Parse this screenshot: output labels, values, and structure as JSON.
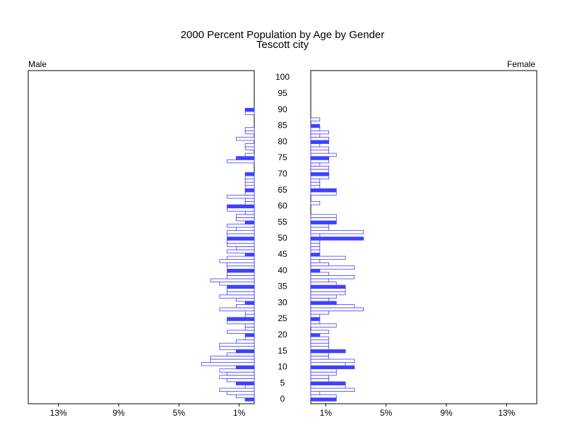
{
  "chart_data": {
    "type": "pyramid",
    "title": "2000 Percent Population by Age by Gender",
    "subtitle": "Tescott city",
    "y": [
      0,
      1,
      2,
      3,
      4,
      5,
      6,
      7,
      8,
      9,
      10,
      11,
      12,
      13,
      14,
      15,
      16,
      17,
      18,
      19,
      20,
      21,
      22,
      23,
      24,
      25,
      26,
      27,
      28,
      29,
      30,
      31,
      32,
      33,
      34,
      35,
      36,
      37,
      38,
      39,
      40,
      41,
      42,
      43,
      44,
      45,
      46,
      47,
      48,
      49,
      50,
      51,
      52,
      53,
      54,
      55,
      56,
      57,
      58,
      59,
      60,
      61,
      62,
      63,
      64,
      65,
      66,
      67,
      68,
      69,
      70,
      71,
      72,
      73,
      74,
      75,
      76,
      77,
      78,
      79,
      80,
      81,
      82,
      83,
      84,
      85,
      86,
      87,
      88,
      89,
      90,
      91,
      92,
      93,
      94,
      95,
      96,
      97,
      98,
      99,
      100
    ],
    "ylim": [
      0,
      100
    ],
    "yticks": [
      0,
      5,
      10,
      15,
      20,
      25,
      30,
      35,
      40,
      45,
      50,
      55,
      60,
      65,
      70,
      75,
      80,
      85,
      90,
      95,
      100
    ],
    "xlim": [
      0,
      15
    ],
    "xticks": [
      {
        "value": 13,
        "label": "13%"
      },
      {
        "value": 9,
        "label": "9%"
      },
      {
        "value": 5,
        "label": "5%"
      },
      {
        "value": 1,
        "label": "1%"
      }
    ],
    "series": [
      {
        "name": "Male",
        "color": "#4040ff",
        "values": [
          0.6,
          1.2,
          1.8,
          2.3,
          0.6,
          1.2,
          1.8,
          2.3,
          1.8,
          2.3,
          1.2,
          3.5,
          2.9,
          2.9,
          1.8,
          1.2,
          2.3,
          2.3,
          1.2,
          0.6,
          0.6,
          1.8,
          0.6,
          0.6,
          1.8,
          1.8,
          0.6,
          0.6,
          2.3,
          1.2,
          0.6,
          1.2,
          2.3,
          1.8,
          1.8,
          1.8,
          2.3,
          2.9,
          1.8,
          1.8,
          1.8,
          1.8,
          1.8,
          2.3,
          1.8,
          0.6,
          1.8,
          1.2,
          1.8,
          1.8,
          1.8,
          1.8,
          1.8,
          1.2,
          1.8,
          0.6,
          1.2,
          1.2,
          0.6,
          1.8,
          1.8,
          0.6,
          0.6,
          1.8,
          0.6,
          0.6,
          0.6,
          0.6,
          0.6,
          0.6,
          0.6,
          0,
          0,
          0,
          1.8,
          1.2,
          0.6,
          0,
          0.6,
          0.6,
          0,
          1.2,
          0,
          0.6,
          0.6,
          0,
          0,
          0,
          0,
          0.6,
          0.6,
          0,
          0,
          0,
          0,
          0,
          0,
          0,
          0,
          0,
          0
        ]
      },
      {
        "name": "Female",
        "color": "#4040ff",
        "values": [
          1.7,
          1.7,
          0.6,
          2.9,
          2.3,
          2.3,
          1.2,
          1.2,
          1.7,
          1.7,
          2.9,
          2.3,
          2.9,
          1.2,
          1.2,
          2.3,
          1.2,
          1.2,
          1.2,
          1.2,
          0.6,
          1.2,
          0,
          1.7,
          0.6,
          0.6,
          0.6,
          1.2,
          3.5,
          2.9,
          1.7,
          1.2,
          1.7,
          2.3,
          2.3,
          2.3,
          1.7,
          1.2,
          2.9,
          1.2,
          0.6,
          2.9,
          1.2,
          0.6,
          2.3,
          0.6,
          0.6,
          0.6,
          0.6,
          0.6,
          3.5,
          0.6,
          3.5,
          1.2,
          1.2,
          1.7,
          1.7,
          1.7,
          0,
          0,
          0,
          0.6,
          0,
          0,
          1.7,
          1.7,
          0.6,
          0.6,
          0.6,
          1.2,
          1.2,
          1.2,
          1.2,
          0.6,
          1.2,
          1.2,
          1.7,
          1.2,
          1.2,
          0.6,
          1.2,
          1.2,
          0.6,
          1.2,
          0.6,
          0.6,
          0,
          0.6,
          0,
          0,
          0,
          0,
          0,
          0,
          0,
          0,
          0,
          0,
          0,
          0,
          0
        ]
      }
    ]
  }
}
